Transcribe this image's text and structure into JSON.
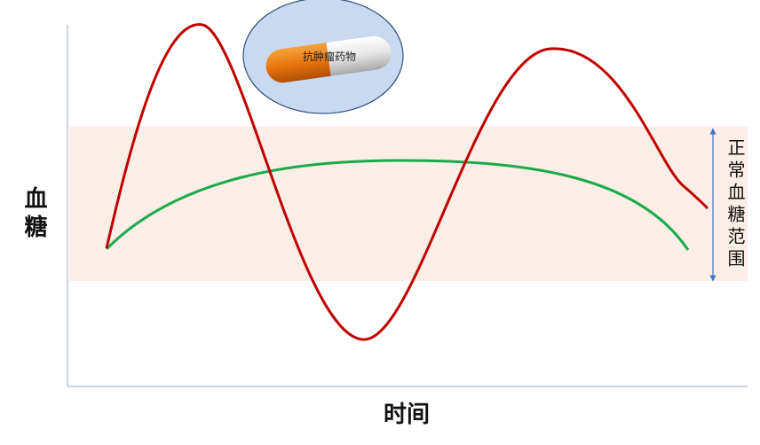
{
  "y_axis_label": "血糖",
  "x_axis_label": "时间",
  "drug_label": "抗肿瘤药物",
  "range_label": "正常血糖范围"
}
